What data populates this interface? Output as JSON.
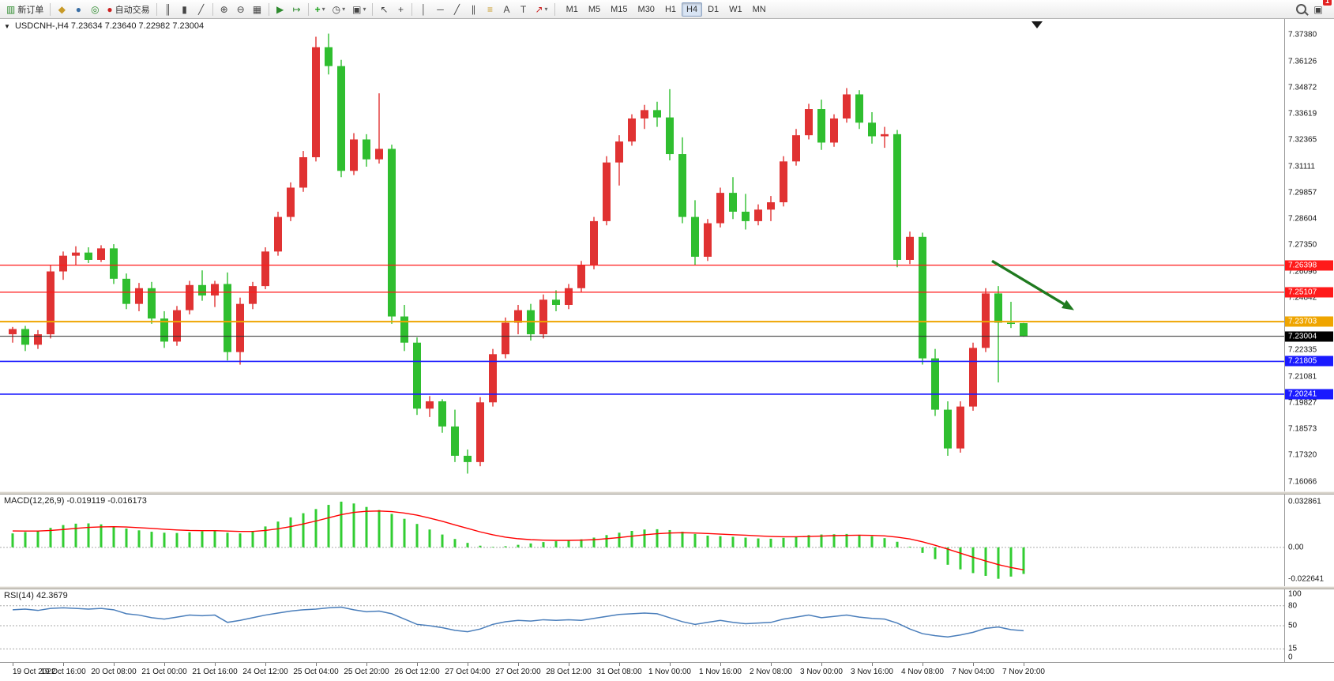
{
  "toolbar": {
    "new_order_label": "新订单",
    "auto_trading_label": "自动交易",
    "timeframes": [
      "M1",
      "M5",
      "M15",
      "M30",
      "H1",
      "H4",
      "D1",
      "W1",
      "MN"
    ],
    "active_timeframe": "H4",
    "badge_count": "1"
  },
  "icons": {
    "new_order": "▥",
    "metaeditor": "◆",
    "market_watch": "●",
    "signals": "◎",
    "autotrading": "●",
    "bar_chart": "║",
    "candle_chart": "▮",
    "line_chart": "╱",
    "zoom_in": "⊕",
    "zoom_out": "⊖",
    "tile_windows": "▦",
    "auto_scroll": "▶",
    "chart_shift": "↦",
    "indicators": "+",
    "periods": "◷",
    "templates": "▣",
    "cursor": "↖",
    "crosshair": "+",
    "vline": "│",
    "hline": "─",
    "trendline": "╱",
    "channel": "∥",
    "fibonacci": "≡",
    "text": "A",
    "text_label": "T",
    "arrows": "↗",
    "dropdown": "▾",
    "collapse": "▼"
  },
  "chart": {
    "symbol": "USDCNH-,H4",
    "ohlc_text": "7.23634 7.23640 7.22982 7.23004"
  },
  "price_axis": {
    "labels": [
      "7.37380",
      "7.36126",
      "7.34872",
      "7.33619",
      "7.32365",
      "7.31111",
      "7.29857",
      "7.28604",
      "7.27350",
      "7.26096",
      "7.24842",
      "7.23588",
      "7.22335",
      "7.21081",
      "7.19827",
      "7.18573",
      "7.17320",
      "7.16066"
    ]
  },
  "price_tags": [
    {
      "text": "7.26398",
      "bg": "#ff1a1a",
      "fg": "#ffffff"
    },
    {
      "text": "7.25107",
      "bg": "#ff1a1a",
      "fg": "#ffffff"
    },
    {
      "text": "7.23703",
      "bg": "#efa500",
      "fg": "#ffffff"
    },
    {
      "text": "7.23004",
      "bg": "#000000",
      "fg": "#ffffff"
    },
    {
      "text": "7.21805",
      "bg": "#1a1aff",
      "fg": "#ffffff"
    },
    {
      "text": "7.20241",
      "bg": "#1a1aff",
      "fg": "#ffffff"
    }
  ],
  "hlines": [
    {
      "price": 7.26398,
      "color": "#ff1a1a",
      "w": 1.2
    },
    {
      "price": 7.25107,
      "color": "#ff1a1a",
      "w": 1.2
    },
    {
      "price": 7.23703,
      "color": "#efa500",
      "w": 2
    },
    {
      "price": 7.23004,
      "color": "#2b2b2b",
      "w": 1
    },
    {
      "price": 7.21805,
      "color": "#1a1aff",
      "w": 1.6
    },
    {
      "price": 7.20241,
      "color": "#1a1aff",
      "w": 1.6
    }
  ],
  "arrow": {
    "from_index": 77.5,
    "from_price": 7.266,
    "to_index": 84,
    "to_price": 7.2425,
    "color": "#1f7a1f"
  },
  "colors": {
    "bull": "#e03232",
    "bear": "#2fbe2f",
    "macd_hist": "#32cd32",
    "macd_signal": "#ff0000",
    "rsi_line": "#4a7ebb",
    "grid_dash": "#aaaaaa"
  },
  "chart_data": {
    "type": "candlestick",
    "symbol": "USDCNH",
    "timeframe": "H4",
    "price_range": [
      7.156,
      7.3815
    ],
    "candles": [
      [
        7.231,
        7.2345,
        7.227,
        7.2335
      ],
      [
        7.2335,
        7.235,
        7.223,
        7.226
      ],
      [
        7.226,
        7.233,
        7.224,
        7.231
      ],
      [
        7.231,
        7.264,
        7.229,
        7.261
      ],
      [
        7.261,
        7.2705,
        7.257,
        7.2685
      ],
      [
        7.2685,
        7.273,
        7.264,
        7.27
      ],
      [
        7.27,
        7.2725,
        7.265,
        7.2665
      ],
      [
        7.2665,
        7.2735,
        7.2655,
        7.272
      ],
      [
        7.272,
        7.274,
        7.255,
        7.2575
      ],
      [
        7.2575,
        7.26,
        7.243,
        7.2455
      ],
      [
        7.2455,
        7.2555,
        7.242,
        7.253
      ],
      [
        7.253,
        7.256,
        7.236,
        7.2385
      ],
      [
        7.2385,
        7.242,
        7.2245,
        7.2275
      ],
      [
        7.2275,
        7.2445,
        7.2255,
        7.2425
      ],
      [
        7.2425,
        7.2565,
        7.2405,
        7.2545
      ],
      [
        7.2545,
        7.2615,
        7.247,
        7.2495
      ],
      [
        7.2495,
        7.2565,
        7.244,
        7.255
      ],
      [
        7.255,
        7.2605,
        7.2185,
        7.2225
      ],
      [
        7.2225,
        7.2485,
        7.2165,
        7.2455
      ],
      [
        7.2455,
        7.256,
        7.243,
        7.254
      ],
      [
        7.254,
        7.2725,
        7.2525,
        7.2705
      ],
      [
        7.2705,
        7.2895,
        7.2685,
        7.287
      ],
      [
        7.287,
        7.3035,
        7.285,
        7.301
      ],
      [
        7.301,
        7.3185,
        7.299,
        7.3155
      ],
      [
        7.3155,
        7.373,
        7.3135,
        7.368
      ],
      [
        7.368,
        7.3745,
        7.355,
        7.359
      ],
      [
        7.359,
        7.362,
        7.306,
        7.309
      ],
      [
        7.309,
        7.327,
        7.307,
        7.324
      ],
      [
        7.324,
        7.3265,
        7.311,
        7.3145
      ],
      [
        7.3145,
        7.346,
        7.3125,
        7.3195
      ],
      [
        7.3195,
        7.3215,
        7.236,
        7.2395
      ],
      [
        7.2395,
        7.245,
        7.223,
        7.227
      ],
      [
        7.227,
        7.2295,
        7.1925,
        7.1955
      ],
      [
        7.1955,
        7.2015,
        7.1915,
        7.199
      ],
      [
        7.199,
        7.2,
        7.184,
        7.187
      ],
      [
        7.187,
        7.195,
        7.17,
        7.173
      ],
      [
        7.173,
        7.176,
        7.1645,
        7.17
      ],
      [
        7.17,
        7.201,
        7.168,
        7.1985
      ],
      [
        7.1985,
        7.224,
        7.1965,
        7.2215
      ],
      [
        7.2215,
        7.239,
        7.2195,
        7.2365
      ],
      [
        7.2365,
        7.245,
        7.231,
        7.2425
      ],
      [
        7.2425,
        7.2455,
        7.228,
        7.231
      ],
      [
        7.231,
        7.25,
        7.229,
        7.2475
      ],
      [
        7.2475,
        7.252,
        7.242,
        7.245
      ],
      [
        7.245,
        7.255,
        7.243,
        7.253
      ],
      [
        7.253,
        7.266,
        7.251,
        7.264
      ],
      [
        7.264,
        7.287,
        7.262,
        7.285
      ],
      [
        7.285,
        7.316,
        7.283,
        7.313
      ],
      [
        7.313,
        7.326,
        7.302,
        7.323
      ],
      [
        7.323,
        7.336,
        7.321,
        7.334
      ],
      [
        7.334,
        7.3405,
        7.329,
        7.338
      ],
      [
        7.338,
        7.342,
        7.33,
        7.3345
      ],
      [
        7.3345,
        7.348,
        7.314,
        7.317
      ],
      [
        7.317,
        7.325,
        7.284,
        7.287
      ],
      [
        7.287,
        7.295,
        7.264,
        7.268
      ],
      [
        7.268,
        7.286,
        7.266,
        7.284
      ],
      [
        7.284,
        7.301,
        7.282,
        7.2985
      ],
      [
        7.2985,
        7.306,
        7.286,
        7.2895
      ],
      [
        7.2895,
        7.298,
        7.281,
        7.285
      ],
      [
        7.285,
        7.293,
        7.283,
        7.2905
      ],
      [
        7.2905,
        7.297,
        7.285,
        7.294
      ],
      [
        7.294,
        7.316,
        7.292,
        7.3135
      ],
      [
        7.3135,
        7.329,
        7.3115,
        7.326
      ],
      [
        7.326,
        7.341,
        7.324,
        7.3385
      ],
      [
        7.3385,
        7.343,
        7.319,
        7.3225
      ],
      [
        7.3225,
        7.336,
        7.3205,
        7.334
      ],
      [
        7.334,
        7.3485,
        7.332,
        7.3455
      ],
      [
        7.3455,
        7.3475,
        7.329,
        7.332
      ],
      [
        7.332,
        7.337,
        7.322,
        7.3255
      ],
      [
        7.3255,
        7.33,
        7.32,
        7.3265
      ],
      [
        7.3265,
        7.3285,
        7.263,
        7.2665
      ],
      [
        7.2665,
        7.28,
        7.2645,
        7.2775
      ],
      [
        7.2775,
        7.2795,
        7.2165,
        7.2195
      ],
      [
        7.2195,
        7.224,
        7.192,
        7.195
      ],
      [
        7.195,
        7.199,
        7.173,
        7.1765
      ],
      [
        7.1765,
        7.199,
        7.1745,
        7.1965
      ],
      [
        7.1965,
        7.227,
        7.1945,
        7.2245
      ],
      [
        7.2245,
        7.253,
        7.2225,
        7.2505
      ],
      [
        7.2505,
        7.254,
        7.208,
        7.2365
      ],
      [
        7.2365,
        7.2465,
        7.234,
        7.2363
      ],
      [
        7.2363,
        7.2364,
        7.2298,
        7.23
      ]
    ],
    "macd": {
      "name": "MACD(12,26,9)",
      "value1": "-0.019119",
      "value2": "-0.016173",
      "axis": [
        "0.032861",
        "0.00",
        "-0.022641"
      ],
      "range": [
        -0.0245,
        0.0345
      ],
      "values": [
        0.01,
        0.011,
        0.012,
        0.014,
        0.016,
        0.017,
        0.0172,
        0.0165,
        0.015,
        0.0135,
        0.0122,
        0.0112,
        0.0105,
        0.0103,
        0.0108,
        0.0115,
        0.0118,
        0.0105,
        0.01,
        0.0118,
        0.015,
        0.0185,
        0.0215,
        0.0245,
        0.0275,
        0.0305,
        0.0328,
        0.0315,
        0.029,
        0.0268,
        0.024,
        0.0205,
        0.0168,
        0.0128,
        0.0092,
        0.006,
        0.0032,
        0.0012,
        0.0004,
        0.0008,
        0.0018,
        0.0028,
        0.0038,
        0.0044,
        0.005,
        0.0058,
        0.007,
        0.0088,
        0.0105,
        0.0118,
        0.0128,
        0.013,
        0.0124,
        0.0112,
        0.0096,
        0.0084,
        0.008,
        0.0076,
        0.007,
        0.0064,
        0.0062,
        0.0068,
        0.0078,
        0.0088,
        0.0092,
        0.0094,
        0.0096,
        0.009,
        0.008,
        0.0066,
        0.004,
        0.0005,
        -0.004,
        -0.0085,
        -0.0125,
        -0.0158,
        -0.0185,
        -0.0205,
        -0.0226,
        -0.021,
        -0.0191
      ],
      "signal": [
        0.0118,
        0.0117,
        0.0117,
        0.0121,
        0.0128,
        0.0136,
        0.0143,
        0.0147,
        0.0148,
        0.0146,
        0.0141,
        0.0136,
        0.013,
        0.0125,
        0.0121,
        0.012,
        0.012,
        0.0117,
        0.0114,
        0.0114,
        0.0121,
        0.0133,
        0.0149,
        0.0168,
        0.0189,
        0.0212,
        0.0235,
        0.0251,
        0.0259,
        0.0261,
        0.0257,
        0.0246,
        0.0231,
        0.021,
        0.0187,
        0.0161,
        0.0136,
        0.0111,
        0.009,
        0.0073,
        0.0062,
        0.0055,
        0.0052,
        0.005,
        0.005,
        0.0052,
        0.0055,
        0.0062,
        0.007,
        0.008,
        0.009,
        0.0098,
        0.0103,
        0.0105,
        0.0103,
        0.0099,
        0.0095,
        0.0091,
        0.0087,
        0.0082,
        0.0078,
        0.0076,
        0.0076,
        0.0078,
        0.0081,
        0.0084,
        0.0086,
        0.0087,
        0.0086,
        0.0082,
        0.0073,
        0.006,
        0.004,
        0.0015,
        -0.0013,
        -0.0042,
        -0.0071,
        -0.0098,
        -0.0124,
        -0.0145,
        -0.0162
      ]
    },
    "rsi": {
      "name": "RSI(14)",
      "value": "42.3679",
      "axis": [
        "100",
        "80",
        "50",
        "15",
        "0"
      ],
      "levels": [
        80,
        50,
        15
      ],
      "values": [
        74,
        75,
        73,
        76,
        77,
        76,
        75,
        76,
        74,
        68,
        66,
        62,
        60,
        63,
        66,
        65,
        66,
        55,
        58,
        62,
        66,
        69,
        72,
        74,
        75,
        77,
        78,
        74,
        71,
        72,
        68,
        60,
        52,
        50,
        47,
        43,
        41,
        45,
        52,
        56,
        58,
        57,
        59,
        58,
        59,
        58,
        61,
        64,
        67,
        68,
        69,
        68,
        62,
        56,
        52,
        55,
        58,
        55,
        53,
        54,
        55,
        60,
        63,
        66,
        62,
        64,
        66,
        63,
        61,
        60,
        54,
        45,
        38,
        35,
        33,
        36,
        40,
        46,
        48,
        44,
        42.37
      ]
    },
    "time_labels": [
      "19 Oct 2022",
      "19 Oct 16:00",
      "20 Oct 08:00",
      "21 Oct 00:00",
      "21 Oct 16:00",
      "24 Oct 12:00",
      "25 Oct 04:00",
      "25 Oct 20:00",
      "26 Oct 12:00",
      "27 Oct 04:00",
      "27 Oct 20:00",
      "28 Oct 12:00",
      "31 Oct 08:00",
      "1 Nov 00:00",
      "1 Nov 16:00",
      "2 Nov 08:00",
      "3 Nov 00:00",
      "3 Nov 16:00",
      "4 Nov 08:00",
      "7 Nov 04:00",
      "7 Nov 20:00"
    ]
  }
}
